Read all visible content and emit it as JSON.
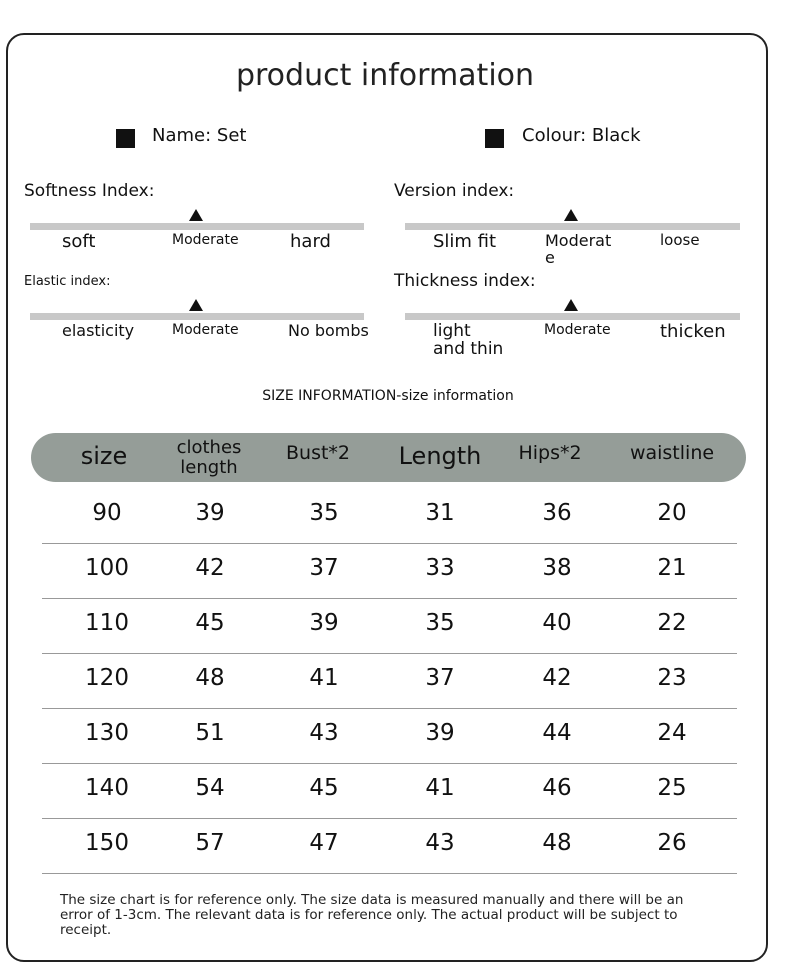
{
  "title": "product information",
  "name": "Name: Set",
  "colour": "Colour: Black",
  "indices": [
    {
      "label": "Softness Index:",
      "left": "soft",
      "mid": "Moderate",
      "right": "hard",
      "level": "Moderate"
    },
    {
      "label": "Version index:",
      "left": "Slim fit",
      "mid": "Moderat\ne",
      "right": "loose",
      "level": "Moderate"
    },
    {
      "label": "Elastic index:",
      "left": "elasticity",
      "mid": "Moderate",
      "right": "No bombs",
      "level": "Moderate"
    },
    {
      "label": "Thickness index:",
      "left": "light\nand thin",
      "mid": "Moderate",
      "right": "thicken",
      "level": "Moderate"
    }
  ],
  "size_title": "SIZE INFORMATION-size information",
  "table": {
    "headers": [
      "size",
      "clothes\nlength",
      "Bust*2",
      "Length",
      "Hips*2",
      "waistline"
    ],
    "rows": [
      [
        "90",
        "39",
        "35",
        "31",
        "36",
        "20"
      ],
      [
        "100",
        "42",
        "37",
        "33",
        "38",
        "21"
      ],
      [
        "110",
        "45",
        "39",
        "35",
        "40",
        "22"
      ],
      [
        "120",
        "48",
        "41",
        "37",
        "42",
        "23"
      ],
      [
        "130",
        "51",
        "43",
        "39",
        "44",
        "24"
      ],
      [
        "140",
        "54",
        "45",
        "41",
        "46",
        "25"
      ],
      [
        "150",
        "57",
        "47",
        "43",
        "48",
        "26"
      ]
    ]
  },
  "footnote": "The size chart is for reference only. The size data is measured manually and there will be an error of 1-3cm. The relevant data is for reference only. The actual product will be subject to receipt.",
  "colors": {
    "header_bg": "#959d98",
    "bar": "#c8c8c8"
  }
}
